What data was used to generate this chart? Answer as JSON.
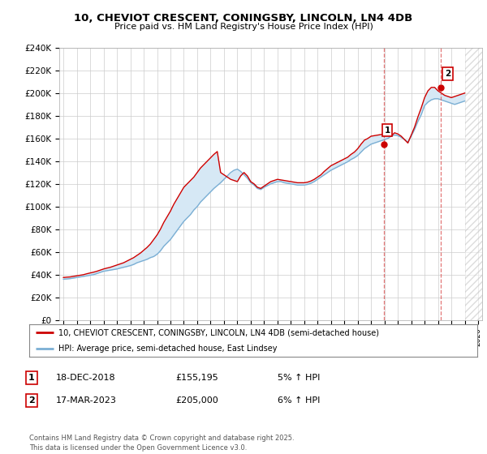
{
  "title": "10, CHEVIOT CRESCENT, CONINGSBY, LINCOLN, LN4 4DB",
  "subtitle": "Price paid vs. HM Land Registry's House Price Index (HPI)",
  "ylabel_values": [
    "£0",
    "£20K",
    "£40K",
    "£60K",
    "£80K",
    "£100K",
    "£120K",
    "£140K",
    "£160K",
    "£180K",
    "£200K",
    "£220K",
    "£240K"
  ],
  "ylim": [
    0,
    240000
  ],
  "yticks": [
    0,
    20000,
    40000,
    60000,
    80000,
    100000,
    120000,
    140000,
    160000,
    180000,
    200000,
    220000,
    240000
  ],
  "xlim_min": 1994.7,
  "xlim_max": 2026.3,
  "xticks": [
    1995,
    1996,
    1997,
    1998,
    1999,
    2000,
    2001,
    2002,
    2003,
    2004,
    2005,
    2006,
    2007,
    2008,
    2009,
    2010,
    2011,
    2012,
    2013,
    2014,
    2015,
    2016,
    2017,
    2018,
    2019,
    2020,
    2021,
    2022,
    2023,
    2024,
    2025,
    2026
  ],
  "line1_color": "#cc0000",
  "line2_color": "#7bafd4",
  "fill_color": "#d6e8f5",
  "marker1_date": 2018.96,
  "marker1_price": 155195,
  "marker2_date": 2023.21,
  "marker2_price": 205000,
  "marker1_label": "1",
  "marker2_label": "2",
  "vline1_date": 2018.96,
  "vline2_date": 2023.21,
  "legend_line1": "10, CHEVIOT CRESCENT, CONINGSBY, LINCOLN, LN4 4DB (semi-detached house)",
  "legend_line2": "HPI: Average price, semi-detached house, East Lindsey",
  "annotation1_num": "1",
  "annotation1_date": "18-DEC-2018",
  "annotation1_price": "£155,195",
  "annotation1_hpi": "5% ↑ HPI",
  "annotation2_num": "2",
  "annotation2_date": "17-MAR-2023",
  "annotation2_price": "£205,000",
  "annotation2_hpi": "6% ↑ HPI",
  "footer": "Contains HM Land Registry data © Crown copyright and database right 2025.\nThis data is licensed under the Open Government Licence v3.0.",
  "background_color": "#ffffff",
  "plot_bg_color": "#ffffff",
  "grid_color": "#cccccc",
  "future_hatch_color": "#cccccc",
  "hpi_line": {
    "x": [
      1995.0,
      1995.25,
      1995.5,
      1995.75,
      1996.0,
      1996.25,
      1996.5,
      1996.75,
      1997.0,
      1997.25,
      1997.5,
      1997.75,
      1998.0,
      1998.25,
      1998.5,
      1998.75,
      1999.0,
      1999.25,
      1999.5,
      1999.75,
      2000.0,
      2000.25,
      2000.5,
      2000.75,
      2001.0,
      2001.25,
      2001.5,
      2001.75,
      2002.0,
      2002.25,
      2002.5,
      2002.75,
      2003.0,
      2003.25,
      2003.5,
      2003.75,
      2004.0,
      2004.25,
      2004.5,
      2004.75,
      2005.0,
      2005.25,
      2005.5,
      2005.75,
      2006.0,
      2006.25,
      2006.5,
      2006.75,
      2007.0,
      2007.25,
      2007.5,
      2007.75,
      2008.0,
      2008.25,
      2008.5,
      2008.75,
      2009.0,
      2009.25,
      2009.5,
      2009.75,
      2010.0,
      2010.25,
      2010.5,
      2010.75,
      2011.0,
      2011.25,
      2011.5,
      2011.75,
      2012.0,
      2012.25,
      2012.5,
      2012.75,
      2013.0,
      2013.25,
      2013.5,
      2013.75,
      2014.0,
      2014.25,
      2014.5,
      2014.75,
      2015.0,
      2015.25,
      2015.5,
      2015.75,
      2016.0,
      2016.25,
      2016.5,
      2016.75,
      2017.0,
      2017.25,
      2017.5,
      2017.75,
      2018.0,
      2018.25,
      2018.5,
      2018.75,
      2019.0,
      2019.25,
      2019.5,
      2019.75,
      2020.0,
      2020.25,
      2020.5,
      2020.75,
      2021.0,
      2021.25,
      2021.5,
      2021.75,
      2022.0,
      2022.25,
      2022.5,
      2022.75,
      2023.0,
      2023.25,
      2023.5,
      2023.75,
      2024.0,
      2024.25,
      2024.5,
      2024.75,
      2025.0
    ],
    "y": [
      36000,
      36200,
      36500,
      37000,
      37500,
      38000,
      38500,
      39000,
      39500,
      40000,
      41000,
      42000,
      43000,
      43500,
      44000,
      44500,
      45000,
      45800,
      46500,
      47200,
      48000,
      49000,
      50500,
      51500,
      52500,
      53500,
      55000,
      56000,
      58000,
      61000,
      65000,
      68000,
      71000,
      75000,
      79000,
      83000,
      87000,
      90000,
      93000,
      97000,
      100000,
      104000,
      107000,
      110000,
      113000,
      116000,
      118500,
      121000,
      124000,
      127000,
      130000,
      132000,
      133000,
      131000,
      128000,
      125000,
      121000,
      119000,
      116000,
      115000,
      117000,
      118500,
      120000,
      121000,
      122000,
      122000,
      121000,
      120500,
      120000,
      119500,
      119000,
      119000,
      119000,
      119500,
      120500,
      122000,
      124000,
      126000,
      128000,
      130000,
      132000,
      133500,
      135000,
      136500,
      138000,
      139500,
      141500,
      143000,
      145000,
      148000,
      151000,
      153000,
      155000,
      156000,
      157000,
      158000,
      159000,
      160000,
      162000,
      163000,
      162500,
      161000,
      159000,
      157000,
      162000,
      168000,
      175000,
      181000,
      189000,
      192000,
      194000,
      195000,
      195000,
      194000,
      193000,
      192000,
      191000,
      190000,
      191000,
      192000,
      193000
    ]
  },
  "price_line": {
    "x": [
      1995.0,
      1995.25,
      1995.5,
      1995.75,
      1996.0,
      1996.25,
      1996.5,
      1996.75,
      1997.0,
      1997.25,
      1997.5,
      1997.75,
      1998.0,
      1998.25,
      1998.5,
      1998.75,
      1999.0,
      1999.25,
      1999.5,
      1999.75,
      2000.0,
      2000.25,
      2000.5,
      2000.75,
      2001.0,
      2001.25,
      2001.5,
      2001.75,
      2002.0,
      2002.25,
      2002.5,
      2002.75,
      2003.0,
      2003.25,
      2003.5,
      2003.75,
      2004.0,
      2004.25,
      2004.5,
      2004.75,
      2005.0,
      2005.25,
      2005.5,
      2005.75,
      2006.0,
      2006.25,
      2006.5,
      2006.75,
      2007.0,
      2007.25,
      2007.5,
      2007.75,
      2008.0,
      2008.25,
      2008.5,
      2008.75,
      2009.0,
      2009.25,
      2009.5,
      2009.75,
      2010.0,
      2010.25,
      2010.5,
      2010.75,
      2011.0,
      2011.25,
      2011.5,
      2011.75,
      2012.0,
      2012.25,
      2012.5,
      2012.75,
      2013.0,
      2013.25,
      2013.5,
      2013.75,
      2014.0,
      2014.25,
      2014.5,
      2014.75,
      2015.0,
      2015.25,
      2015.5,
      2015.75,
      2016.0,
      2016.25,
      2016.5,
      2016.75,
      2017.0,
      2017.25,
      2017.5,
      2017.75,
      2018.0,
      2018.25,
      2018.5,
      2018.75,
      2019.0,
      2019.25,
      2019.5,
      2019.75,
      2020.0,
      2020.25,
      2020.5,
      2020.75,
      2021.0,
      2021.25,
      2021.5,
      2021.75,
      2022.0,
      2022.25,
      2022.5,
      2022.75,
      2023.0,
      2023.25,
      2023.5,
      2023.75,
      2024.0,
      2024.25,
      2024.5,
      2024.75,
      2025.0
    ],
    "y": [
      37500,
      37800,
      38000,
      38500,
      39000,
      39500,
      40000,
      40800,
      41500,
      42200,
      43000,
      44000,
      45000,
      45800,
      46500,
      47500,
      48500,
      49500,
      50500,
      52000,
      53500,
      55000,
      57000,
      59000,
      61500,
      64000,
      67000,
      71000,
      75000,
      80000,
      86000,
      91000,
      96000,
      102000,
      107000,
      112000,
      117000,
      120000,
      123000,
      126000,
      130000,
      134000,
      137000,
      140000,
      143000,
      146000,
      148500,
      130000,
      128000,
      126000,
      124000,
      123000,
      122000,
      127000,
      130000,
      127000,
      122000,
      120000,
      117000,
      116000,
      118000,
      120000,
      122000,
      123000,
      124000,
      123500,
      123000,
      122500,
      122000,
      121500,
      121000,
      121000,
      121000,
      121500,
      122500,
      124000,
      126000,
      128000,
      131000,
      133500,
      136000,
      137500,
      139000,
      140500,
      142000,
      143500,
      146000,
      148000,
      151000,
      155000,
      158500,
      160000,
      162000,
      162500,
      163000,
      163500,
      164000,
      163000,
      162000,
      165000,
      164000,
      162000,
      159000,
      156000,
      163000,
      170000,
      179000,
      187000,
      196000,
      202000,
      205000,
      205000,
      202000,
      200000,
      198000,
      197000,
      196000,
      197000,
      198000,
      199000,
      200000
    ]
  },
  "future_start": 2025.0
}
